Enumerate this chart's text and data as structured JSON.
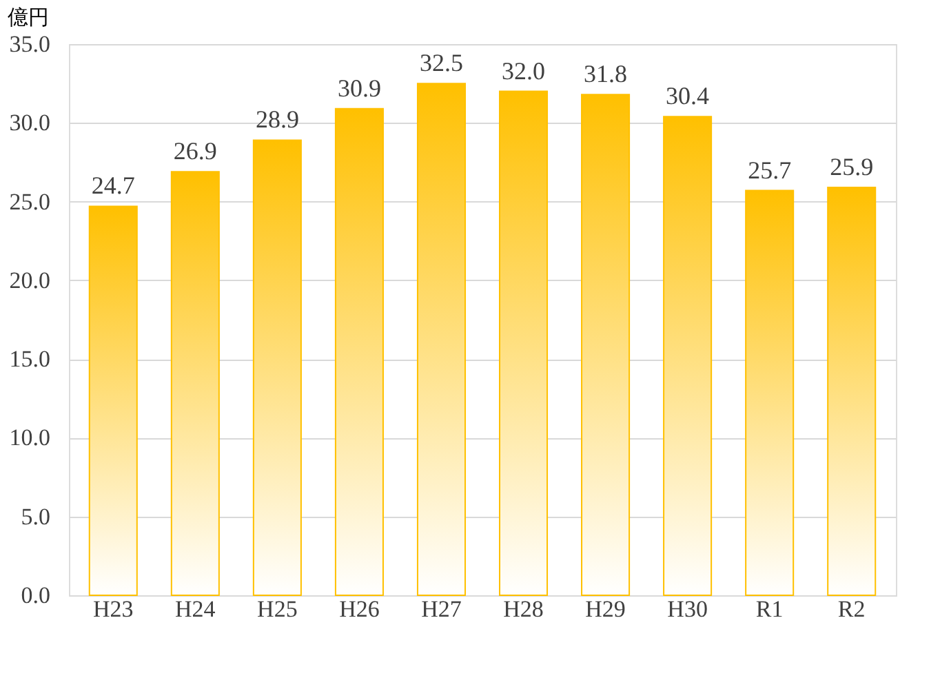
{
  "chart_data": {
    "type": "bar",
    "ylabel": "億円",
    "categories": [
      "H23",
      "H24",
      "H25",
      "H26",
      "H27",
      "H28",
      "H29",
      "H30",
      "R1",
      "R2"
    ],
    "values": [
      24.7,
      26.9,
      28.9,
      30.9,
      32.5,
      32.0,
      31.8,
      30.4,
      25.7,
      25.9
    ],
    "value_labels": [
      "24.7",
      "26.9",
      "28.9",
      "30.9",
      "32.5",
      "32.0",
      "31.8",
      "30.4",
      "25.7",
      "25.9"
    ],
    "color": "#ffc000",
    "ylim": [
      0,
      35
    ],
    "yticks": [
      {
        "value": 0,
        "label": "0.0"
      },
      {
        "value": 5,
        "label": "5.0"
      },
      {
        "value": 10,
        "label": "10.0"
      },
      {
        "value": 15,
        "label": "15.0"
      },
      {
        "value": 20,
        "label": "20.0"
      },
      {
        "value": 25,
        "label": "25.0"
      },
      {
        "value": 30,
        "label": "30.0"
      },
      {
        "value": 35,
        "label": "35.0"
      }
    ],
    "grid": "y"
  }
}
